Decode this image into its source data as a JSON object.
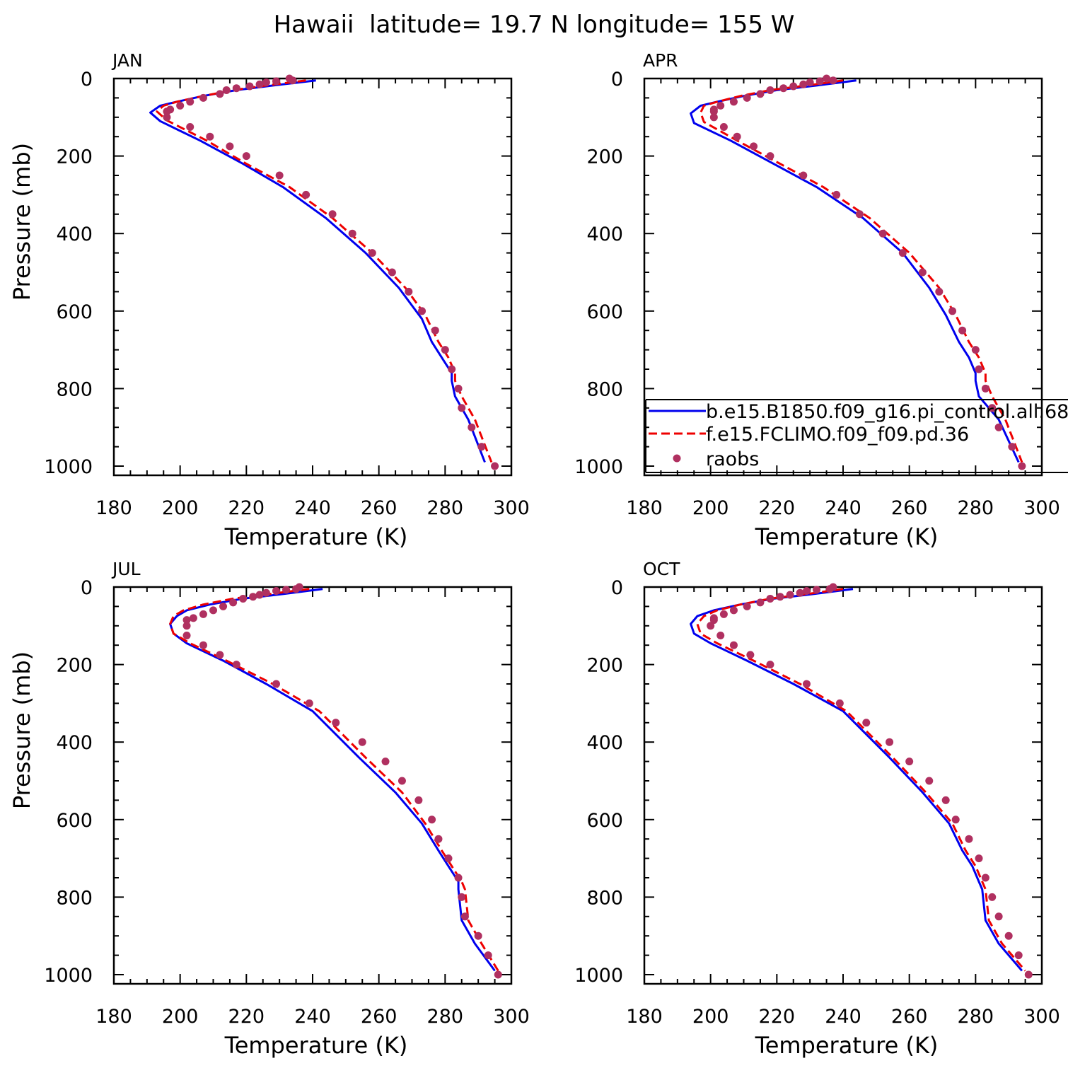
{
  "figure": {
    "title": "Hawaii  latitude= 19.7 N longitude= 155 W"
  },
  "colors": {
    "model_b": "#0000ee",
    "model_f": "#ee0000",
    "raobs": "#b03060",
    "axis": "#000000"
  },
  "legend": {
    "panel": "APR",
    "placement": "lower-right (overflowing right edge)",
    "entries": [
      {
        "label": "b.e15.B1850.f09_g16.pi_control.all.68",
        "style": "solid-line",
        "color": "#0000ee"
      },
      {
        "label": "f.e15.FCLIMO.f09_f09.pd.36",
        "style": "dashed-line",
        "color": "#ee0000"
      },
      {
        "label": "raobs",
        "style": "dot",
        "color": "#b03060"
      }
    ]
  },
  "chart_data": [
    {
      "type": "line",
      "panel": "JAN",
      "xlabel": "Temperature (K)",
      "ylabel": "Pressure (mb)",
      "xlim": [
        180,
        300
      ],
      "ylim": [
        1000,
        0
      ],
      "xticks": [
        180,
        200,
        220,
        240,
        260,
        280,
        300
      ],
      "yticks": [
        0,
        200,
        400,
        600,
        800,
        1000
      ],
      "series": [
        {
          "name": "b.e15.B1850.f09_g16.pi_control.all.68",
          "style": "solid",
          "color": "#0000ee",
          "x": [
            241,
            228,
            217,
            207,
            199,
            194,
            191,
            194,
            206,
            219,
            231,
            244,
            256,
            266,
            273,
            276,
            279,
            282,
            282,
            283,
            287,
            292
          ],
          "y": [
            5,
            18,
            30,
            45,
            60,
            70,
            88,
            110,
            160,
            220,
            280,
            360,
            450,
            540,
            620,
            680,
            720,
            760,
            780,
            820,
            880,
            990
          ]
        },
        {
          "name": "f.e15.FCLIMO.f09_f09.pd.36",
          "style": "dashed",
          "color": "#ee0000",
          "x": [
            238,
            226,
            216,
            207,
            199,
            195,
            193,
            196,
            208,
            220,
            233,
            246,
            258,
            268,
            274,
            278,
            281,
            283,
            283,
            285,
            289,
            294
          ],
          "y": [
            5,
            18,
            30,
            45,
            60,
            70,
            85,
            108,
            160,
            220,
            280,
            360,
            450,
            540,
            610,
            680,
            720,
            760,
            780,
            820,
            880,
            990
          ]
        },
        {
          "name": "raobs",
          "style": "dots",
          "color": "#b03060",
          "x": [
            233,
            234,
            229,
            226,
            224,
            221,
            217,
            214,
            212,
            207,
            203,
            200,
            197,
            196,
            196,
            203,
            209,
            215,
            220,
            230,
            238,
            246,
            252,
            258,
            264,
            269,
            273,
            277,
            280,
            282,
            284,
            285,
            288,
            291,
            295
          ],
          "y": [
            0,
            5,
            7,
            10,
            15,
            20,
            25,
            30,
            40,
            50,
            60,
            70,
            80,
            85,
            100,
            125,
            150,
            175,
            200,
            250,
            300,
            350,
            400,
            450,
            500,
            550,
            600,
            650,
            700,
            750,
            800,
            850,
            900,
            950,
            1000
          ]
        }
      ]
    },
    {
      "type": "line",
      "panel": "APR",
      "xlabel": "Temperature (K)",
      "ylabel": "",
      "xlim": [
        180,
        300
      ],
      "ylim": [
        1000,
        0
      ],
      "xticks": [
        180,
        200,
        220,
        240,
        260,
        280,
        300
      ],
      "yticks": [
        0,
        200,
        400,
        600,
        800,
        1000
      ],
      "series": [
        {
          "name": "b.e15.B1850.f09_g16.pi_control.all.68",
          "style": "solid",
          "color": "#0000ee",
          "x": [
            244,
            232,
            220,
            210,
            202,
            197,
            194,
            195,
            206,
            219,
            232,
            246,
            258,
            266,
            271,
            275,
            278,
            280,
            280,
            281,
            287,
            293
          ],
          "y": [
            5,
            18,
            30,
            45,
            60,
            70,
            90,
            115,
            160,
            220,
            280,
            360,
            450,
            540,
            610,
            680,
            720,
            760,
            780,
            820,
            880,
            990
          ]
        },
        {
          "name": "f.e15.FCLIMO.f09_f09.pd.36",
          "style": "dashed",
          "color": "#ee0000",
          "x": [
            240,
            229,
            218,
            209,
            202,
            198,
            197,
            198,
            208,
            221,
            234,
            248,
            260,
            269,
            274,
            278,
            281,
            283,
            283,
            285,
            289,
            294
          ],
          "y": [
            5,
            18,
            30,
            45,
            60,
            70,
            88,
            112,
            160,
            220,
            280,
            360,
            450,
            540,
            610,
            680,
            720,
            760,
            780,
            820,
            880,
            990
          ]
        },
        {
          "name": "raobs",
          "style": "dots",
          "color": "#b03060",
          "x": [
            235,
            237,
            233,
            230,
            228,
            225,
            222,
            218,
            215,
            211,
            207,
            203,
            201,
            201,
            201,
            204,
            208,
            213,
            218,
            228,
            238,
            245,
            252,
            258,
            264,
            269,
            273,
            276,
            280,
            281,
            283,
            285,
            287,
            291,
            294
          ],
          "y": [
            0,
            5,
            7,
            10,
            15,
            20,
            25,
            30,
            40,
            50,
            60,
            70,
            80,
            85,
            100,
            125,
            150,
            175,
            200,
            250,
            300,
            350,
            400,
            450,
            500,
            550,
            600,
            650,
            700,
            750,
            800,
            850,
            900,
            950,
            1000
          ]
        }
      ]
    },
    {
      "type": "line",
      "panel": "JUL",
      "xlabel": "Temperature (K)",
      "ylabel": "Pressure (mb)",
      "xlim": [
        180,
        300
      ],
      "ylim": [
        1000,
        0
      ],
      "xticks": [
        180,
        200,
        220,
        240,
        260,
        280,
        300
      ],
      "yticks": [
        0,
        200,
        400,
        600,
        800,
        1000
      ],
      "series": [
        {
          "name": "b.e15.B1850.f09_g16.pi_control.all.68",
          "style": "solid",
          "color": "#0000ee",
          "x": [
            243,
            231,
            219,
            209,
            202,
            199,
            197,
            198,
            202,
            213,
            226,
            240,
            254,
            265,
            273,
            278,
            281,
            284,
            284,
            285,
            289,
            295
          ],
          "y": [
            5,
            18,
            30,
            45,
            60,
            75,
            95,
            120,
            145,
            190,
            250,
            320,
            440,
            530,
            610,
            680,
            720,
            760,
            780,
            860,
            920,
            990
          ]
        },
        {
          "name": "f.e15.FCLIMO.f09_f09.pd.36",
          "style": "dashed",
          "color": "#ee0000",
          "x": [
            239,
            227,
            216,
            207,
            201,
            198,
            197,
            198,
            203,
            214,
            228,
            242,
            256,
            267,
            274,
            279,
            282,
            285,
            286,
            287,
            291,
            296
          ],
          "y": [
            5,
            18,
            30,
            45,
            60,
            75,
            95,
            120,
            145,
            190,
            250,
            320,
            440,
            530,
            610,
            680,
            720,
            760,
            780,
            860,
            920,
            990
          ]
        },
        {
          "name": "raobs",
          "style": "dots",
          "color": "#b03060",
          "x": [
            236,
            235,
            232,
            229,
            226,
            224,
            222,
            219,
            216,
            213,
            210,
            207,
            204,
            202,
            202,
            202,
            207,
            212,
            217,
            229,
            239,
            247,
            255,
            262,
            267,
            272,
            276,
            278,
            281,
            284,
            285,
            286,
            290,
            293,
            296
          ],
          "y": [
            0,
            5,
            7,
            10,
            15,
            20,
            25,
            30,
            40,
            50,
            60,
            70,
            80,
            85,
            100,
            125,
            150,
            175,
            200,
            250,
            300,
            350,
            400,
            450,
            500,
            550,
            600,
            650,
            700,
            750,
            800,
            850,
            900,
            950,
            1000
          ]
        }
      ]
    },
    {
      "type": "line",
      "panel": "OCT",
      "xlabel": "Temperature (K)",
      "ylabel": "",
      "xlim": [
        180,
        300
      ],
      "ylim": [
        1000,
        0
      ],
      "xticks": [
        180,
        200,
        220,
        240,
        260,
        280,
        300
      ],
      "yticks": [
        0,
        200,
        400,
        600,
        800,
        1000
      ],
      "series": [
        {
          "name": "b.e15.B1850.f09_g16.pi_control.all.68",
          "style": "solid",
          "color": "#0000ee",
          "x": [
            243,
            231,
            219,
            209,
            201,
            196,
            194,
            195,
            200,
            211,
            225,
            240,
            254,
            264,
            272,
            276,
            279,
            281,
            282,
            283,
            287,
            294
          ],
          "y": [
            5,
            18,
            30,
            45,
            60,
            75,
            95,
            120,
            145,
            190,
            250,
            320,
            440,
            530,
            610,
            680,
            720,
            760,
            780,
            860,
            920,
            990
          ]
        },
        {
          "name": "f.e15.FCLIMO.f09_f09.pd.36",
          "style": "dashed",
          "color": "#ee0000",
          "x": [
            240,
            229,
            218,
            209,
            202,
            198,
            196,
            197,
            202,
            213,
            227,
            241,
            255,
            265,
            273,
            277,
            280,
            282,
            283,
            284,
            288,
            295
          ],
          "y": [
            5,
            18,
            30,
            45,
            60,
            75,
            95,
            120,
            145,
            190,
            250,
            320,
            440,
            530,
            610,
            680,
            720,
            760,
            780,
            860,
            920,
            990
          ]
        },
        {
          "name": "raobs",
          "style": "dots",
          "color": "#b03060",
          "x": [
            237,
            236,
            232,
            229,
            227,
            224,
            221,
            218,
            215,
            211,
            207,
            204,
            201,
            201,
            200,
            203,
            207,
            212,
            218,
            229,
            239,
            247,
            254,
            260,
            266,
            271,
            274,
            278,
            281,
            283,
            285,
            287,
            290,
            293,
            296
          ],
          "y": [
            0,
            5,
            7,
            10,
            15,
            20,
            25,
            30,
            40,
            50,
            60,
            70,
            80,
            85,
            100,
            125,
            150,
            175,
            200,
            250,
            300,
            350,
            400,
            450,
            500,
            550,
            600,
            650,
            700,
            750,
            800,
            850,
            900,
            950,
            1000
          ]
        }
      ]
    }
  ]
}
